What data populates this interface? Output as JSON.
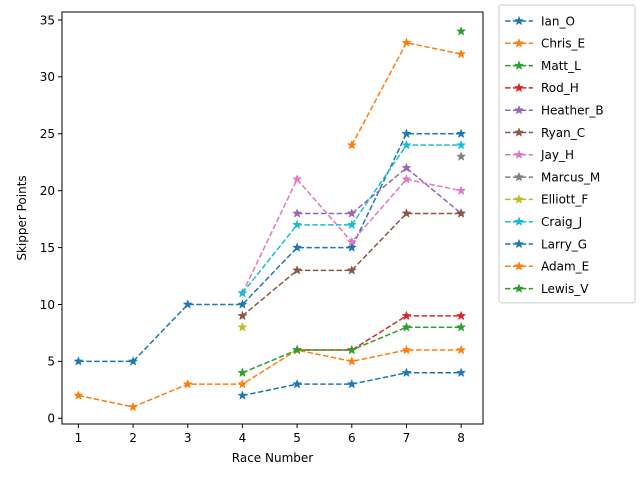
{
  "chart_data": {
    "type": "line",
    "xlabel": "Race Number",
    "ylabel": "Skipper Points",
    "x": [
      1,
      2,
      3,
      4,
      5,
      6,
      7,
      8
    ],
    "xticks": [
      "1",
      "2",
      "3",
      "4",
      "5",
      "6",
      "7",
      "8"
    ],
    "xlim": [
      0.7,
      8.4
    ],
    "ylim": [
      -0.5,
      35.7
    ],
    "yticks": [
      "0",
      "5",
      "10",
      "15",
      "20",
      "25",
      "30",
      "35"
    ],
    "grid": false,
    "legend_placement": "outside-top-right",
    "line_style": "dashed",
    "marker": "star",
    "series": [
      {
        "name": "Ian_O",
        "color": "#1f77b4",
        "values": [
          5,
          5,
          10,
          10,
          15,
          15,
          25,
          25
        ]
      },
      {
        "name": "Chris_E",
        "color": "#ff7f0e",
        "values": [
          null,
          null,
          null,
          null,
          null,
          24,
          33,
          32
        ]
      },
      {
        "name": "Matt_L",
        "color": "#2ca02c",
        "values": [
          null,
          null,
          null,
          null,
          null,
          null,
          null,
          34
        ]
      },
      {
        "name": "Rod_H",
        "color": "#d62728",
        "values": [
          null,
          null,
          null,
          null,
          6,
          6,
          9,
          9
        ]
      },
      {
        "name": "Heather_B",
        "color": "#9467bd",
        "values": [
          null,
          null,
          null,
          null,
          18,
          18,
          22,
          18
        ]
      },
      {
        "name": "Ryan_C",
        "color": "#8c564b",
        "values": [
          null,
          null,
          null,
          9,
          13,
          13,
          18,
          18
        ]
      },
      {
        "name": "Jay_H",
        "color": "#e377c2",
        "values": [
          null,
          null,
          null,
          11,
          21,
          15.5,
          21,
          20
        ]
      },
      {
        "name": "Marcus_M",
        "color": "#7f7f7f",
        "values": [
          null,
          null,
          null,
          null,
          null,
          null,
          null,
          23
        ]
      },
      {
        "name": "Elliott_F",
        "color": "#bcbd22",
        "values": [
          null,
          null,
          null,
          8,
          null,
          null,
          null,
          null
        ]
      },
      {
        "name": "Craig_J",
        "color": "#17becf",
        "values": [
          null,
          null,
          null,
          11,
          17,
          17,
          24,
          24
        ]
      },
      {
        "name": "Larry_G",
        "color": "#1f77b4",
        "values": [
          null,
          null,
          null,
          2,
          3,
          3,
          4,
          4
        ]
      },
      {
        "name": "Adam_E",
        "color": "#ff7f0e",
        "values": [
          2,
          1,
          3,
          3,
          6,
          5,
          6,
          6
        ]
      },
      {
        "name": "Lewis_V",
        "color": "#2ca02c",
        "values": [
          null,
          null,
          null,
          4,
          6,
          6,
          8,
          8
        ]
      }
    ]
  }
}
